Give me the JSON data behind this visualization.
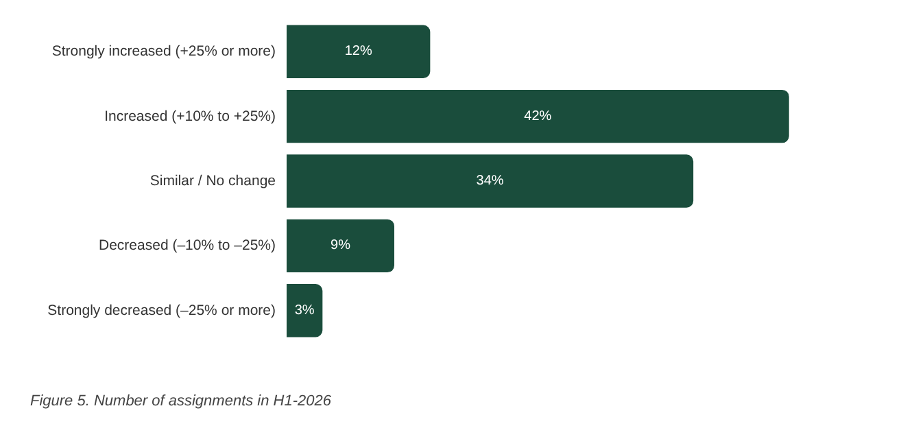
{
  "chart_data": {
    "type": "bar",
    "orientation": "horizontal",
    "categories": [
      "Strongly increased (+25% or more)",
      "Increased (+10% to +25%)",
      "Similar / No change",
      "Decreased (–10% to –25%)",
      "Strongly decreased (–25% or more)"
    ],
    "values": [
      12,
      42,
      34,
      9,
      3
    ],
    "value_labels": [
      "12%",
      "42%",
      "34%",
      "9%",
      "3%"
    ],
    "color": "#1a4d3c",
    "annotations": [
      "Figure 5. Number of assignments in H1-2026"
    ]
  }
}
